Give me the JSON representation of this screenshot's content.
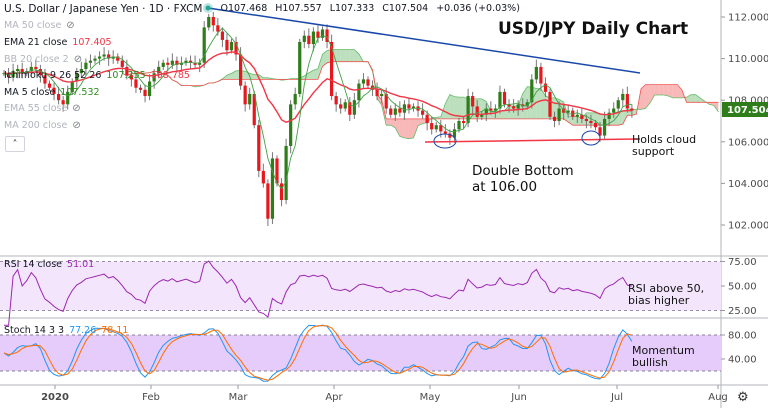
{
  "header": {
    "symbol": "U.S. Dollar / Japanese Yen · 1D · FXCM",
    "open": "O107.468",
    "high": "H107.557",
    "low": "L107.333",
    "close": "C107.504",
    "change": "+0.036 (+0.03%)"
  },
  "legend": [
    {
      "label": "MA 50 close",
      "value": "",
      "hidden": true,
      "icon": "eye-off-icon"
    },
    {
      "label": "EMA 21 close",
      "value": "107.405",
      "hidden": false,
      "color": "#f23645"
    },
    {
      "label": "BB 20 close 2",
      "value": "",
      "hidden": true,
      "icon": "eye-off-icon"
    },
    {
      "label": "Ichimoku 9 26 52 26",
      "value": "107.255",
      "value2": "108.785",
      "hidden": false,
      "color": "#2e8b1e",
      "color2": "#f23645"
    },
    {
      "label": "MA 5 close",
      "value": "107.532",
      "hidden": false,
      "color": "#2e8b1e"
    },
    {
      "label": "EMA 55 close",
      "value": "",
      "hidden": true,
      "icon": "eye-off-icon"
    },
    {
      "label": "MA 200 close",
      "value": "",
      "hidden": true,
      "icon": "eye-off-icon"
    }
  ],
  "collapse_label": "˄",
  "rsi": {
    "label": "RSI 14 close",
    "value": "51.01",
    "color": "#9c27b0"
  },
  "stoch": {
    "label": "Stoch 14 3 3",
    "k": "77.26",
    "d": "78.11",
    "k_color": "#2196f3",
    "d_color": "#ff6d00"
  },
  "annotations": {
    "title": "USD/JPY Daily Chart",
    "double_bottom": "Double Bottom\nat 106.00",
    "cloud": "Holds cloud\nsupport",
    "rsi_note": "RSI above 50,\nbias higher",
    "momentum": "Momentum\nbullish"
  },
  "last_price_badge": "107.504",
  "colors": {
    "up": "#2e7d1a",
    "down": "#e8161d",
    "trendline": "#1848a8",
    "support": "#f23645",
    "badge": "#2e7d1a"
  },
  "chart_data": {
    "type": "candlestick",
    "price_axis": {
      "ticks": [
        "112.000",
        "110.000",
        "108.000",
        "106.000",
        "104.000",
        "102.000"
      ],
      "range": [
        100.5,
        112.8
      ]
    },
    "rsi_axis": {
      "ticks": [
        "75.00",
        "50.00",
        "25.00"
      ]
    },
    "stoch_axis": {
      "ticks": [
        "80.00",
        "40.00"
      ]
    },
    "time_axis": [
      "2020",
      "Feb",
      "Mar",
      "Apr",
      "May",
      "Jun",
      "Jul",
      "Aug"
    ],
    "closes": [
      109.3,
      109.1,
      109.4,
      109.5,
      109.3,
      109.4,
      109.6,
      109.5,
      109.2,
      108.8,
      108.6,
      108.3,
      108.0,
      107.8,
      108.4,
      108.9,
      109.3,
      109.5,
      109.8,
      109.9,
      110.0,
      110.1,
      110.2,
      110.0,
      110.1,
      109.9,
      109.6,
      109.2,
      109.0,
      108.6,
      108.5,
      108.2,
      108.9,
      109.3,
      109.6,
      109.8,
      109.7,
      109.9,
      109.7,
      109.8,
      109.9,
      109.8,
      109.7,
      109.8,
      111.5,
      112.0,
      111.6,
      111.3,
      110.9,
      110.4,
      110.8,
      110.2,
      108.7,
      107.8,
      108.3,
      106.8,
      104.6,
      104.0,
      102.3,
      105.2,
      104.0,
      103.2,
      105.8,
      107.8,
      108.3,
      110.8,
      111.1,
      110.7,
      111.3,
      111.0,
      111.4,
      110.8,
      108.2,
      107.8,
      107.6,
      107.9,
      107.3,
      108.0,
      108.8,
      109.0,
      108.7,
      108.5,
      108.2,
      108.3,
      107.6,
      107.3,
      107.6,
      107.4,
      107.8,
      107.6,
      107.7,
      107.5,
      107.3,
      106.9,
      106.6,
      106.8,
      106.5,
      106.4,
      106.2,
      106.6,
      107.0,
      106.9,
      108.2,
      107.7,
      107.2,
      107.3,
      107.6,
      107.5,
      107.6,
      108.4,
      107.8,
      107.7,
      107.6,
      107.8,
      107.7,
      107.9,
      109.0,
      109.6,
      108.8,
      108.4,
      107.2,
      107.0,
      107.6,
      107.4,
      107.5,
      107.2,
      107.3,
      107.1,
      107.0,
      106.9,
      106.7,
      106.3,
      107.1,
      107.4,
      107.6,
      108.0,
      108.3,
      107.6,
      107.504
    ]
  }
}
